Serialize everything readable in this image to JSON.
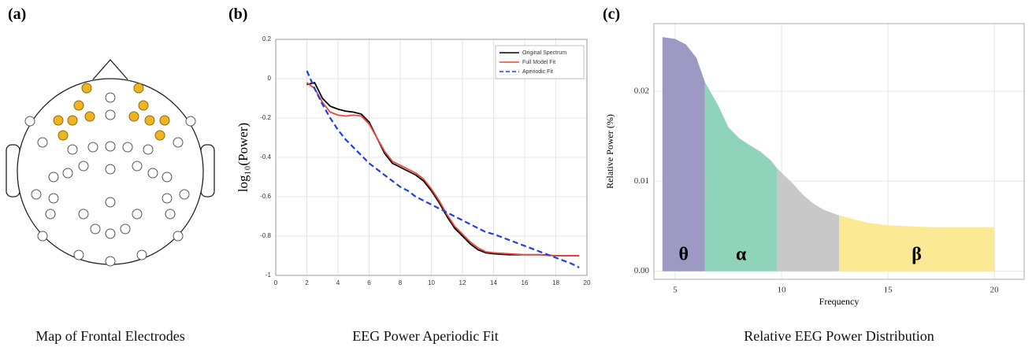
{
  "figure": {
    "panels": [
      {
        "label": "(a)",
        "caption": "Map of Frontal Electrodes"
      },
      {
        "label": "(b)",
        "caption": "EEG Power Aperiodic Fit"
      },
      {
        "label": "(c)",
        "caption": "Relative EEG Power Distribution"
      }
    ]
  },
  "chart_data": [
    {
      "type": "line",
      "y_label": "log₁₀(Power)",
      "legend": "upper right",
      "grid": true,
      "xlim": [
        0,
        20
      ],
      "xticks": [
        0,
        2,
        4,
        6,
        8,
        10,
        12,
        14,
        16,
        18,
        20
      ],
      "ylim": [
        -1,
        0.2
      ],
      "yticks": [
        0.2,
        0,
        -0.2,
        -0.4,
        -0.6,
        -0.8,
        -1
      ],
      "x": [
        2,
        2.5,
        3,
        3.5,
        4,
        4.5,
        5,
        5.5,
        6,
        6.5,
        7,
        7.5,
        8,
        8.5,
        9,
        9.5,
        10,
        10.5,
        11,
        11.5,
        12,
        12.5,
        13,
        13.5,
        14,
        15,
        16,
        17,
        18,
        19,
        19.5
      ],
      "series": [
        {
          "name": "Original Spectrum",
          "color": "#000000",
          "linestyle": "solid",
          "values": [
            -0.03,
            -0.02,
            -0.1,
            -0.14,
            -0.155,
            -0.165,
            -0.17,
            -0.18,
            -0.22,
            -0.3,
            -0.38,
            -0.43,
            -0.45,
            -0.47,
            -0.49,
            -0.52,
            -0.57,
            -0.63,
            -0.7,
            -0.76,
            -0.8,
            -0.84,
            -0.87,
            -0.885,
            -0.89,
            -0.895,
            -0.895,
            -0.895,
            -0.9,
            -0.9,
            -0.9
          ]
        },
        {
          "name": "Full Model Fit",
          "color": "#e8473b",
          "linestyle": "solid",
          "values": [
            -0.02,
            -0.05,
            -0.12,
            -0.17,
            -0.185,
            -0.19,
            -0.185,
            -0.19,
            -0.23,
            -0.3,
            -0.37,
            -0.42,
            -0.44,
            -0.46,
            -0.48,
            -0.51,
            -0.56,
            -0.62,
            -0.69,
            -0.75,
            -0.79,
            -0.83,
            -0.86,
            -0.88,
            -0.885,
            -0.89,
            -0.895,
            -0.895,
            -0.9,
            -0.9,
            -0.9
          ]
        },
        {
          "name": "Aperiodic Fit",
          "color": "#1f3fe0",
          "linestyle": "dashed",
          "values": [
            0.04,
            -0.05,
            -0.13,
            -0.2,
            -0.26,
            -0.31,
            -0.35,
            -0.39,
            -0.43,
            -0.46,
            -0.49,
            -0.52,
            -0.55,
            -0.57,
            -0.6,
            -0.62,
            -0.64,
            -0.66,
            -0.68,
            -0.7,
            -0.72,
            -0.74,
            -0.76,
            -0.78,
            -0.79,
            -0.82,
            -0.85,
            -0.88,
            -0.91,
            -0.94,
            -0.96
          ]
        }
      ]
    },
    {
      "type": "area",
      "x_label": "Frequency",
      "y_label": "Relative Power (%)",
      "grid": true,
      "xlim": [
        4,
        21.4
      ],
      "xticks": [
        5,
        10,
        15,
        20
      ],
      "ylim": [
        -0.0009,
        0.0275
      ],
      "yticks": [
        {
          "value": 0,
          "label": "0.00"
        },
        {
          "value": 0.01,
          "label": "0.01"
        },
        {
          "value": 0.02,
          "label": "0.02"
        }
      ],
      "x": [
        4.4,
        5,
        5.5,
        6,
        6.4,
        7,
        7.5,
        8,
        8.5,
        9,
        9.5,
        9.8,
        10.5,
        11,
        11.5,
        12,
        12.7,
        13.5,
        14,
        15,
        16,
        17,
        18,
        19,
        20
      ],
      "values": [
        0.026,
        0.0258,
        0.0252,
        0.0237,
        0.021,
        0.0185,
        0.016,
        0.0148,
        0.014,
        0.0133,
        0.0123,
        0.0114,
        0.0098,
        0.0085,
        0.0075,
        0.0068,
        0.0062,
        0.0057,
        0.0054,
        0.0051,
        0.005,
        0.0049,
        0.0049,
        0.0049,
        0.0049
      ],
      "bands": [
        {
          "name": "θ",
          "color": "#9c9ac5",
          "range": [
            4.4,
            6.4
          ]
        },
        {
          "name": "α",
          "color": "#8fd4ba",
          "range": [
            6.4,
            9.8
          ]
        },
        {
          "name": null,
          "color": "#c8c8c8",
          "range": [
            9.8,
            12.7
          ]
        },
        {
          "name": "β",
          "color": "#fbea93",
          "range": [
            12.7,
            20
          ]
        }
      ]
    }
  ]
}
